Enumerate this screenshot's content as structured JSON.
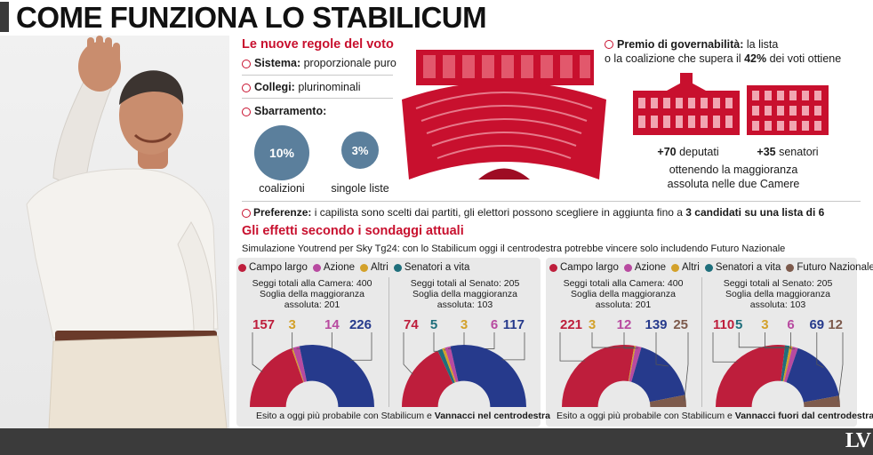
{
  "title": "COME FUNZIONA LO STABILICUM",
  "logo": "LV",
  "rules": {
    "heading": "Le nuove regole del voto",
    "sistema_label": "Sistema:",
    "sistema_value": "proporzionale puro",
    "collegi_label": "Collegi:",
    "collegi_value": "plurinominali",
    "sbarramento_label": "Sbarramento:",
    "thresholds": [
      {
        "value": "10%",
        "label": "coalizioni"
      },
      {
        "value": "3%",
        "label": "singole liste"
      }
    ]
  },
  "premio": {
    "label": "Premio di governabilità:",
    "text1": "la lista",
    "text2_pre": "o la coalizione che supera il",
    "text2_pct": "42%",
    "text2_post": "dei voti ottiene",
    "deputati_num": "+70",
    "deputati_label": "deputati",
    "senatori_num": "+35",
    "senatori_label": "senatori",
    "note1": "ottenendo la maggioranza",
    "note2": "assoluta nelle due Camere"
  },
  "preferenze": {
    "label": "Preferenze:",
    "text": "i capilista sono scelti dai partiti, gli elettori possono scegliere in aggiunta fino a",
    "bold": "3 candidati su una lista di 6"
  },
  "effetti": {
    "heading": "Gli effetti secondo i sondaggi attuali",
    "simulation": "Simulazione Youtrend per Sky Tg24: con lo Stabilicum oggi il centrodestra potrebbe vincere  solo includendo Futuro Nazionale"
  },
  "colors": {
    "campo_largo": "#be1e3c",
    "azione": "#b84aa0",
    "altri": "#d3a12a",
    "senatori_vita": "#1f6f7c",
    "futuro_nazionale": "#7d5a4c",
    "centrodestra": "#263a8c"
  },
  "panels": [
    {
      "legend": [
        {
          "label": "Campo largo",
          "color": "#be1e3c"
        },
        {
          "label": "Azione",
          "color": "#b84aa0"
        },
        {
          "label": "Altri",
          "color": "#d3a12a"
        },
        {
          "label": "Senatori a vita",
          "color": "#1f6f7c"
        }
      ],
      "esito_pre": "Esito a oggi più probabile con Stabilicum e",
      "esito_bold": "Vannacci nel centrodestra"
    },
    {
      "legend": [
        {
          "label": "Campo largo",
          "color": "#be1e3c"
        },
        {
          "label": "Azione",
          "color": "#b84aa0"
        },
        {
          "label": "Altri",
          "color": "#d3a12a"
        },
        {
          "label": "Senatori a vita",
          "color": "#1f6f7c"
        },
        {
          "label": "Futuro Nazionale",
          "color": "#7d5a4c"
        }
      ],
      "esito_pre": "Esito a oggi più probabile con Stabilicum e",
      "esito_bold": "Vannacci fuori dal centrodestra"
    }
  ],
  "chart_data": [
    {
      "type": "pie",
      "subtype": "parliament-semicircle",
      "chamber_line1": "Seggi totali alla Camera: 400",
      "chamber_line2": "Soglia della maggioranza",
      "chamber_line3": "assoluta: 201",
      "total": 400,
      "majority": 201,
      "segments": [
        {
          "value": 157,
          "label": "157",
          "color": "#be1e3c"
        },
        {
          "value": 3,
          "label": "3",
          "color": "#d3a12a"
        },
        {
          "value": 14,
          "label": "14",
          "color": "#b84aa0"
        },
        {
          "value": 226,
          "label": "226",
          "color": "#263a8c"
        }
      ]
    },
    {
      "type": "pie",
      "subtype": "parliament-semicircle",
      "chamber_line1": "Seggi totali al Senato: 205",
      "chamber_line2": "Soglia della maggioranza",
      "chamber_line3": "assoluta: 103",
      "total": 205,
      "majority": 103,
      "segments": [
        {
          "value": 74,
          "label": "74",
          "color": "#be1e3c"
        },
        {
          "value": 5,
          "label": "5",
          "color": "#1f6f7c"
        },
        {
          "value": 3,
          "label": "3",
          "color": "#d3a12a"
        },
        {
          "value": 6,
          "label": "6",
          "color": "#b84aa0"
        },
        {
          "value": 117,
          "label": "117",
          "color": "#263a8c"
        }
      ]
    },
    {
      "type": "pie",
      "subtype": "parliament-semicircle",
      "chamber_line1": "Seggi totali alla Camera: 400",
      "chamber_line2": "Soglia della maggioranza",
      "chamber_line3": "assoluta: 201",
      "total": 400,
      "majority": 201,
      "segments": [
        {
          "value": 221,
          "label": "221",
          "color": "#be1e3c"
        },
        {
          "value": 3,
          "label": "3",
          "color": "#d3a12a"
        },
        {
          "value": 12,
          "label": "12",
          "color": "#b84aa0"
        },
        {
          "value": 139,
          "label": "139",
          "color": "#263a8c"
        },
        {
          "value": 25,
          "label": "25",
          "color": "#7d5a4c"
        }
      ]
    },
    {
      "type": "pie",
      "subtype": "parliament-semicircle",
      "chamber_line1": "Seggi totali al Senato: 205",
      "chamber_line2": "Soglia della maggioranza",
      "chamber_line3": "assoluta: 103",
      "total": 205,
      "majority": 103,
      "segments": [
        {
          "value": 110,
          "label": "110",
          "color": "#be1e3c"
        },
        {
          "value": 5,
          "label": "5",
          "color": "#1f6f7c"
        },
        {
          "value": 3,
          "label": "3",
          "color": "#d3a12a"
        },
        {
          "value": 6,
          "label": "6",
          "color": "#b84aa0"
        },
        {
          "value": 69,
          "label": "69",
          "color": "#263a8c"
        },
        {
          "value": 12,
          "label": "12",
          "color": "#7d5a4c"
        }
      ]
    }
  ]
}
